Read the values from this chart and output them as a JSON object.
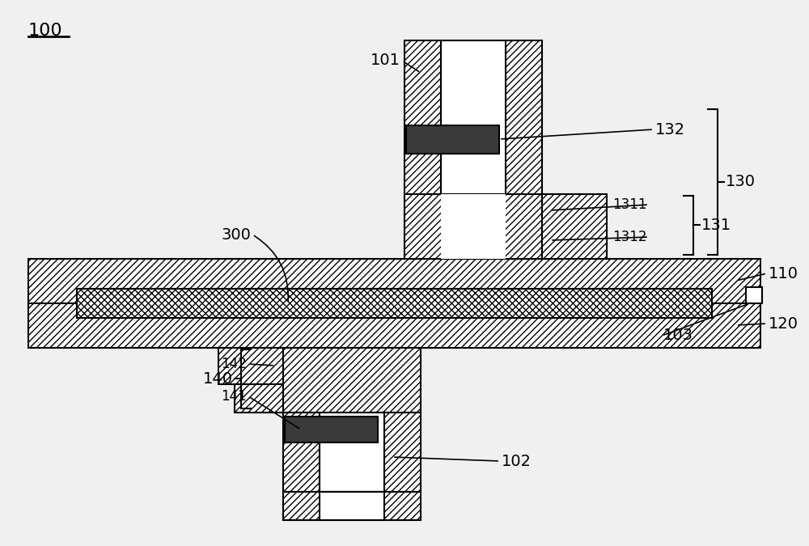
{
  "bg_color": "#f0f0f0",
  "line_color": "#000000",
  "dark_rect": "#3a3a3a",
  "label_100": "100",
  "label_101": "101",
  "label_102": "102",
  "label_103": "103",
  "label_110": "110",
  "label_120": "120",
  "label_130": "130",
  "label_131": "131",
  "label_1311": "1311",
  "label_1312": "1312",
  "label_132": "132",
  "label_140": "140",
  "label_141": "141",
  "label_142": "142",
  "label_300": "300",
  "figw": 10.0,
  "figh": 6.75,
  "dpi": 100
}
